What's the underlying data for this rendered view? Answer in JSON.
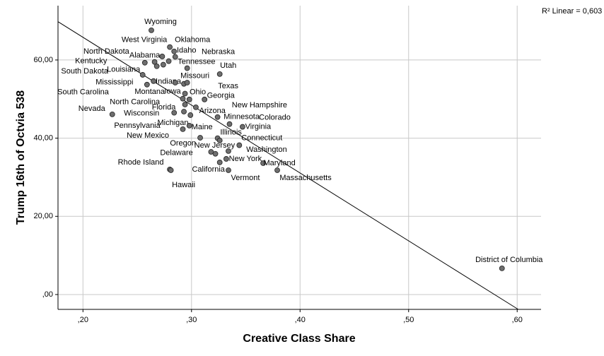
{
  "chart_data": {
    "type": "scatter",
    "x_label": "Creative Class Share",
    "y_label": "Trump 16th of Octvia 538",
    "r2_label": "R² Linear = 0,603",
    "labels": [
      "Wyoming",
      "West Virginia",
      "Oklahoma",
      "Idaho",
      "Nebraska",
      "North Dakota",
      "Alabama",
      "Kentucky",
      "Tennessee",
      "Louisiana",
      "Utah",
      "Missouri",
      "South Dakota",
      "Mississippi",
      "Indiana",
      "Montana",
      "Iowa",
      "Texas",
      "Ohio",
      "Georgia",
      "South Carolina",
      "North Carolina",
      "Florida",
      "Nevada",
      "Wisconsin",
      "Arizona",
      "New Hampshire",
      "Minnesota",
      "Colorado",
      "Virginia",
      "Pennsylvania",
      "Michigan",
      "Maine",
      "Illinois",
      "New Mexico",
      "Connecticut",
      "Oregon",
      "New Jersey",
      "Delaware",
      "Washington",
      "New York",
      "California",
      "Rhode Island",
      "Hawaii",
      "Vermont",
      "Maryland",
      "Massachusetts",
      "District of Columbia"
    ],
    "x": [
      0.263,
      0.28,
      0.284,
      0.285,
      0.279,
      0.273,
      0.266,
      0.257,
      0.274,
      0.268,
      0.326,
      0.296,
      0.255,
      0.259,
      0.265,
      0.285,
      0.293,
      0.296,
      0.294,
      0.312,
      0.292,
      0.298,
      0.294,
      0.227,
      0.284,
      0.299,
      0.304,
      0.324,
      0.335,
      0.347,
      0.293,
      0.292,
      0.298,
      0.324,
      0.308,
      0.344,
      0.326,
      0.318,
      0.322,
      0.334,
      0.332,
      0.326,
      0.28,
      0.281,
      0.334,
      0.366,
      0.379,
      0.586
    ],
    "values": [
      67.6,
      63.3,
      62.2,
      60.8,
      59.7,
      60.9,
      59.5,
      59.3,
      58.8,
      58.4,
      56.4,
      57.9,
      56.2,
      53.7,
      54.6,
      54.2,
      53.9,
      54.2,
      51.4,
      49.9,
      50.1,
      49.9,
      48.6,
      46.1,
      46.5,
      45.9,
      47.9,
      45.4,
      43.6,
      42.9,
      46.8,
      42.3,
      43.2,
      40.0,
      40.1,
      38.2,
      39.4,
      36.5,
      36.0,
      36.7,
      34.7,
      33.8,
      32.0,
      31.8,
      31.8,
      33.6,
      31.8,
      6.7
    ],
    "color": "#6e6e6e",
    "fit_line": {
      "x": [
        0.177,
        0.601
      ],
      "y": [
        69.8,
        -3.8
      ]
    },
    "xlim": [
      0.177,
      0.622
    ],
    "ylim": [
      -3.8,
      73.9
    ],
    "xticks": [
      {
        "value": 0.2,
        "label": ",20"
      },
      {
        "value": 0.3,
        "label": ",30"
      },
      {
        "value": 0.4,
        "label": ",40"
      },
      {
        "value": 0.5,
        "label": ",50"
      },
      {
        "value": 0.6,
        "label": ",60"
      }
    ],
    "yticks": [
      {
        "value": 0,
        "label": ",00"
      },
      {
        "value": 20,
        "label": "20,00"
      },
      {
        "value": 40,
        "label": "40,00"
      },
      {
        "value": 60,
        "label": "60,00"
      }
    ],
    "grid": true
  }
}
